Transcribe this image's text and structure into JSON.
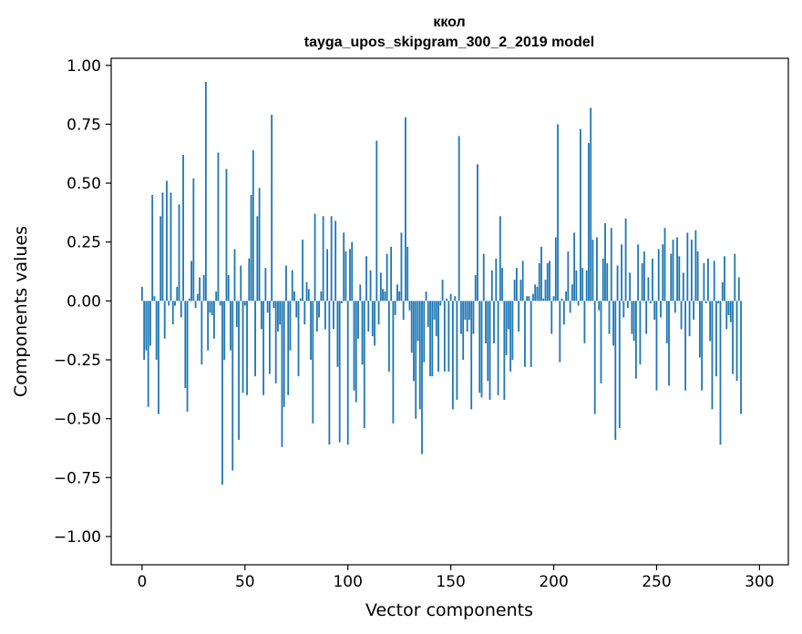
{
  "chart_data": {
    "type": "bar",
    "title": "ккол",
    "subtitle": "tayga_upos_skipgram_300_2_2019 model",
    "xlabel": "Vector components",
    "ylabel": "Components values",
    "xlim": [
      -15,
      314
    ],
    "ylim": [
      -1.12,
      1.03
    ],
    "xticks": [
      0,
      50,
      100,
      150,
      200,
      250,
      300
    ],
    "xtick_labels": [
      "0",
      "50",
      "100",
      "150",
      "200",
      "250",
      "300"
    ],
    "yticks": [
      1.0,
      0.75,
      0.5,
      0.25,
      0.0,
      -0.25,
      -0.5,
      -0.75,
      -1.0
    ],
    "ytick_labels": [
      "1.00",
      "0.75",
      "0.50",
      "0.25",
      "0.00",
      "−0.25",
      "−0.50",
      "−0.75",
      "−1.00"
    ],
    "bar_color": "#1f77b4",
    "grid": false,
    "x_start": 0,
    "values": [
      0.06,
      -0.25,
      -0.21,
      -0.45,
      -0.19,
      0.45,
      0.02,
      -0.25,
      -0.48,
      0.36,
      0.46,
      -0.16,
      0.51,
      -0.02,
      0.46,
      -0.1,
      -0.02,
      0.06,
      0.41,
      -0.07,
      0.62,
      -0.37,
      -0.47,
      0.01,
      0.17,
      0.52,
      -0.03,
      0.03,
      0.1,
      -0.27,
      0.11,
      0.93,
      -0.21,
      -0.05,
      -0.06,
      -0.16,
      0.04,
      0.63,
      -0.02,
      -0.78,
      -0.25,
      0.56,
      0.11,
      -0.21,
      -0.72,
      0.22,
      -0.11,
      -0.59,
      0.15,
      -0.39,
      -0.02,
      -0.4,
      0.18,
      0.45,
      0.64,
      -0.32,
      0.36,
      0.48,
      -0.12,
      -0.4,
      0.14,
      -0.05,
      -0.31,
      0.79,
      -0.03,
      -0.35,
      -0.13,
      -0.1,
      -0.62,
      -0.45,
      0.15,
      -0.4,
      -0.21,
      0.13,
      0.04,
      -0.07,
      -0.32,
      0.01,
      0.26,
      -0.1,
      0.08,
      0.05,
      -0.25,
      -0.52,
      0.37,
      -0.13,
      -0.07,
      0.04,
      0.36,
      -0.12,
      0.22,
      -0.61,
      0.36,
      -0.12,
      0.34,
      -0.28,
      -0.6,
      -0.01,
      0.29,
      0.21,
      -0.61,
      0.22,
      0.25,
      -0.38,
      -0.43,
      -0.16,
      0.07,
      -0.27,
      -0.54,
      0.19,
      -0.13,
      0.13,
      -0.15,
      -0.19,
      0.68,
      -0.1,
      0.12,
      0.05,
      0.04,
      0.2,
      -0.3,
      0.23,
      -0.52,
      -0.06,
      0.07,
      0.04,
      0.29,
      -0.08,
      0.78,
      0.23,
      -0.04,
      -0.22,
      -0.34,
      -0.5,
      -0.17,
      -0.46,
      -0.65,
      -0.26,
      0.04,
      -0.11,
      -0.32,
      -0.32,
      -0.08,
      -0.15,
      -0.3,
      -0.02,
      0.09,
      -0.3,
      0.01,
      -0.3,
      0.03,
      -0.46,
      0.02,
      -0.42,
      0.7,
      -0.14,
      -0.25,
      -0.08,
      -0.13,
      -0.08,
      -0.46,
      -0.14,
      0.11,
      0.58,
      -0.39,
      -0.41,
      0.2,
      -0.18,
      -0.34,
      -0.42,
      0.13,
      -0.18,
      0.18,
      -0.4,
      0.36,
      0.14,
      -0.42,
      -0.23,
      -0.12,
      -0.3,
      -0.25,
      0.09,
      0.14,
      -0.13,
      0.09,
      0.17,
      -0.28,
      0.02,
      0.02,
      -0.28,
      0.03,
      0.07,
      0.06,
      0.16,
      0.23,
      0.01,
      0.09,
      0.16,
      0.17,
      -0.14,
      0.02,
      0.27,
      0.75,
      -0.26,
      0.01,
      -0.1,
      0.04,
      0.21,
      -0.05,
      0.07,
      0.29,
      0.13,
      -0.02,
      0.73,
      0.14,
      -0.18,
      0.13,
      0.67,
      0.82,
      0.26,
      -0.48,
      0.27,
      -0.04,
      -0.35,
      0.18,
      0.33,
      0.16,
      -0.14,
      0.31,
      -0.19,
      -0.59,
      0.15,
      -0.54,
      0.24,
      -0.07,
      0.35,
      -0.03,
      0.12,
      -0.14,
      -0.17,
      -0.33,
      0.24,
      -0.27,
      0.16,
      0.21,
      -0.14,
      0.1,
      -0.01,
      0.18,
      -0.08,
      -0.38,
      0.22,
      -0.07,
      0.24,
      0.31,
      -0.18,
      -0.36,
      0.2,
      0.26,
      -0.05,
      0.27,
      0.19,
      -0.12,
      0.12,
      -0.38,
      0.29,
      -0.15,
      0.26,
      -0.08,
      0.3,
      0.21,
      -0.24,
      -0.38,
      0.16,
      -0.01,
      0.18,
      -0.17,
      -0.46,
      0.17,
      -0.32,
      -0.01,
      -0.61,
      0.08,
      0.19,
      -0.12,
      -0.06,
      -0.09,
      -0.31,
      0.2,
      -0.34,
      0.1,
      -0.48
    ]
  }
}
